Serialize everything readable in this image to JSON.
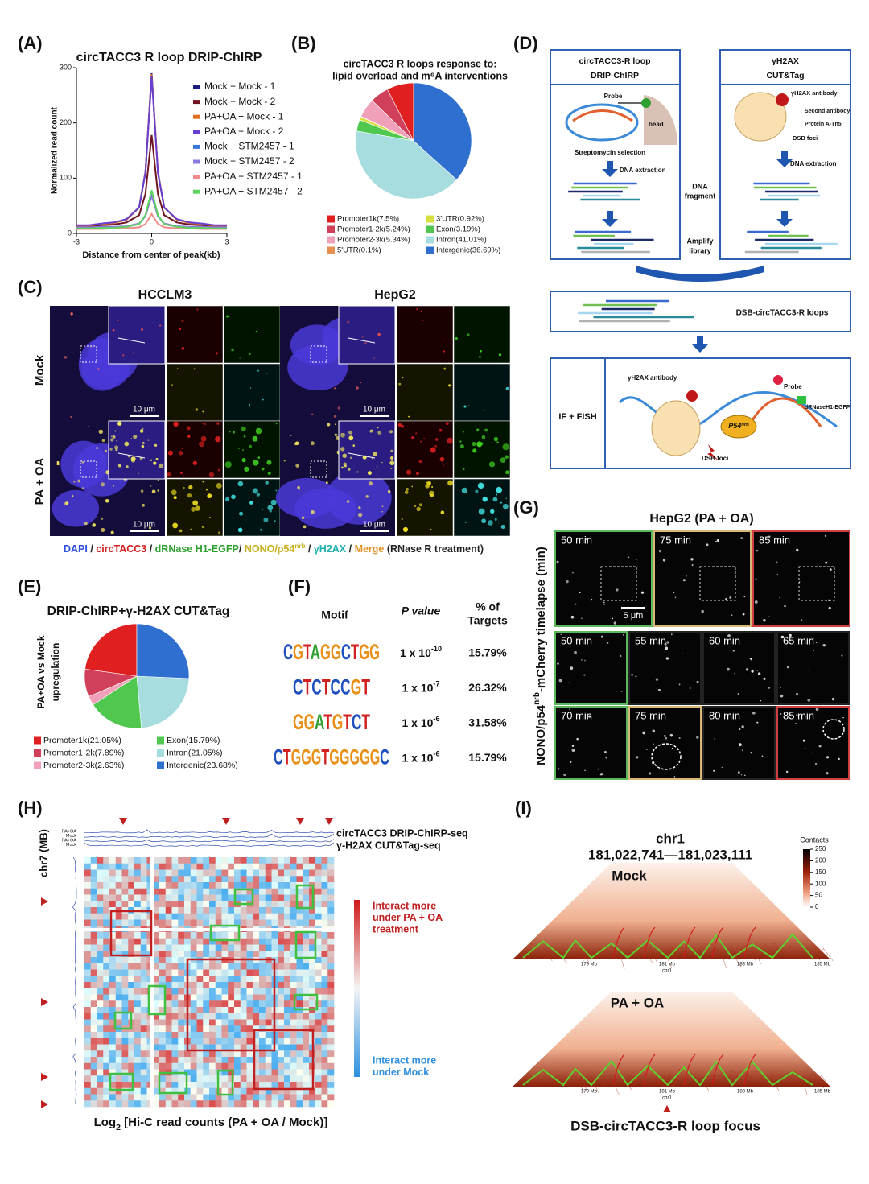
{
  "panel_labels": [
    "(A)",
    "(B)",
    "(C)",
    "(D)",
    "(E)",
    "(F)",
    "(G)",
    "(H)",
    "(I)"
  ],
  "chart_data": [
    {
      "type": "line",
      "title": "circTACC3 R loop DRIP-ChIRP",
      "xlabel": "Distance from center of peak(kb)",
      "ylabel": "Normalized read count",
      "x": [
        -3,
        -2.5,
        -2,
        -1.5,
        -1,
        -0.5,
        -0.25,
        0,
        0.25,
        0.5,
        1,
        1.5,
        2,
        2.5,
        3
      ],
      "xlim": [
        -3,
        3
      ],
      "xticks": [
        -3,
        0,
        3
      ],
      "ylim": [
        0,
        300
      ],
      "yticks": [
        0,
        100,
        200,
        300
      ],
      "series": [
        {
          "name": "Mock + Mock - 1",
          "color": "#1c1c78",
          "values": [
            14,
            14,
            17,
            20,
            25,
            47,
            111,
            290,
            111,
            47,
            25,
            20,
            17,
            14,
            14
          ]
        },
        {
          "name": "Mock + Mock - 2",
          "color": "#6e1420",
          "values": [
            13,
            13,
            15,
            16,
            20,
            33,
            71,
            178,
            71,
            33,
            20,
            16,
            15,
            13,
            13
          ]
        },
        {
          "name": "PA+OA + Mock - 1",
          "color": "#e0701e",
          "values": [
            14,
            14,
            17,
            19,
            25,
            47,
            110,
            288,
            110,
            47,
            25,
            19,
            17,
            14,
            14
          ]
        },
        {
          "name": "PA+OA + Mock - 2",
          "color": "#6a3fd0",
          "values": [
            15,
            15,
            18,
            20,
            26,
            47,
            109,
            284,
            109,
            47,
            26,
            20,
            18,
            15,
            15
          ]
        },
        {
          "name": "Mock + STM2457 - 1",
          "color": "#3a78d8",
          "values": [
            10,
            10,
            11,
            11,
            12,
            17,
            32,
            72,
            32,
            17,
            12,
            11,
            11,
            10,
            10
          ]
        },
        {
          "name": "Mock + STM2457 - 2",
          "color": "#8a78e0",
          "values": [
            11,
            11,
            12,
            12,
            13,
            18,
            31,
            68,
            31,
            18,
            13,
            12,
            12,
            11,
            11
          ]
        },
        {
          "name": "PA+OA + STM2457  - 1",
          "color": "#f08a8a",
          "values": [
            8,
            8,
            8,
            9,
            9,
            11,
            17,
            35,
            17,
            11,
            9,
            9,
            8,
            8,
            8
          ]
        },
        {
          "name": "PA+OA + STM2457  - 2",
          "color": "#5fd35f",
          "values": [
            9,
            9,
            10,
            10,
            12,
            17,
            33,
            78,
            33,
            17,
            12,
            10,
            10,
            9,
            9
          ]
        }
      ]
    },
    {
      "type": "pie",
      "title": [
        "circTACC3 R loops response to:",
        "lipid overload and m⁶A interventions"
      ],
      "categories": [
        "Promoter1k",
        "Promoter1-2k",
        "Promoter2-3k",
        "5'UTR",
        "3'UTR",
        "Exon",
        "Intron",
        "Intergenic"
      ],
      "values": [
        7.5,
        5.24,
        5.34,
        0.1,
        0.92,
        3.19,
        41.01,
        36.69
      ],
      "value_labels": [
        "Promoter1k(7.5%)",
        "Promoter1-2k(5.24%)",
        "Promoter2-3k(5.34%)",
        "5'UTR(0.1%)",
        "3'UTR(0.92%)",
        "Exon(3.19%)",
        "Intron(41.01%)",
        "Intergenic(36.69%)"
      ],
      "colors": [
        "#e02020",
        "#d0405a",
        "#f0a0b8",
        "#e89050",
        "#d8e040",
        "#50c850",
        "#a8dde0",
        "#2f6fd0"
      ]
    },
    {
      "type": "pie",
      "title": "DRIP-ChIRP+γ-H2AX CUT&Tag",
      "side_label": [
        "PA+OA vs Mock",
        "upregulation"
      ],
      "categories": [
        "Promoter1k",
        "Promoter1-2k",
        "Promoter2-3k",
        "Exon",
        "Intron",
        "Intergenic"
      ],
      "values": [
        21.05,
        7.89,
        2.63,
        15.79,
        21.05,
        23.68
      ],
      "value_labels": [
        "Promoter1k(21.05%)",
        "Promoter1-2k(7.89%)",
        "Promoter2-3k(2.63%)",
        "Exon(15.79%)",
        "Intron(21.05%)",
        "Intergenic(23.68%)"
      ],
      "colors": [
        "#e02020",
        "#d0405a",
        "#f0a0b8",
        "#50c850",
        "#a8dde0",
        "#2f6fd0"
      ]
    }
  ],
  "panel_c": {
    "columns": [
      "HCCLM3",
      "HepG2"
    ],
    "rows": [
      "Mock",
      "PA + OA"
    ],
    "scale_bar": "10 μm",
    "legend": [
      {
        "text": "DAPI",
        "color": "#3050e0"
      },
      {
        "text": " / ",
        "color": "#222222"
      },
      {
        "text": "circTACC3",
        "color": "#d02020"
      },
      {
        "text": " / ",
        "color": "#222222"
      },
      {
        "text": "dRNase H1-EGFP",
        "color": "#30a030"
      },
      {
        "text": "/ ",
        "color": "#222222"
      },
      {
        "text": "NONO/p54",
        "color": "#c8b020"
      },
      {
        "text": "nrb",
        "color": "#c8b020",
        "superscript": true
      },
      {
        "text": " / ",
        "color": "#222222"
      },
      {
        "text": "γH2AX",
        "color": "#20b0b0"
      },
      {
        "text": " / ",
        "color": "#222222"
      },
      {
        "text": "Merge",
        "color": "#e09020"
      },
      {
        "text": " (RNase R treatment)",
        "color": "#222222"
      }
    ]
  },
  "panel_d": {
    "left_header": [
      "circTACC3-R loop",
      "DRIP-ChIRP"
    ],
    "right_header": [
      "γH2AX",
      "CUT&Tag"
    ],
    "probe": "Probe",
    "bead": "bead",
    "selection": "Streptomycin selection",
    "extraction": "DNA extraction",
    "middle": [
      "DNA",
      "fragment"
    ],
    "amplify": [
      "Amplify",
      "library"
    ],
    "antibody": "γH2AX antibody",
    "second_antibody": "Second antibody",
    "protein": "Protein A-Tn5",
    "dsb": "DSB foci",
    "merged": "DSB-circTACC3-R loops",
    "if_fish": "IF + FISH",
    "p54": [
      "P54",
      "nrb"
    ],
    "egfp": "dRNaseH1-EGFP"
  },
  "panel_f": {
    "motif_header": "Motif",
    "p_header": "P value",
    "pct_header": [
      "% of",
      "Targets"
    ],
    "rows": [
      {
        "motif": "CGTAGGCTGG",
        "p_base": "1 x 10",
        "p_exp": "-10",
        "targets": "15.79%"
      },
      {
        "motif": "CTCTCCGT",
        "p_base": "1 x 10",
        "p_exp": "-7",
        "targets": "26.32%"
      },
      {
        "motif": "GGATGTCT",
        "p_base": "1 x 10",
        "p_exp": "-6",
        "targets": "31.58%"
      },
      {
        "motif": "CTGGGTGGGGGC",
        "p_base": "1 x 10",
        "p_exp": "-6",
        "targets": "15.79%"
      }
    ]
  },
  "panel_g": {
    "title": "HepG2 (PA + OA)",
    "ylabel": [
      "NONO/p54",
      "nrb",
      "-mCherry timelapse (min)"
    ],
    "top_times": [
      "50 min",
      "75 min",
      "85 min"
    ],
    "grid_times": [
      "50 min",
      "55 min",
      "60 min",
      "65 min",
      "70 min",
      "75 min",
      "80 min",
      "85 min"
    ],
    "scale_bar": "5 μm"
  },
  "panel_h": {
    "chr_label": "chr7 (MB)",
    "track_labels": [
      "circTACC3 DRIP-ChIRP-seq",
      "γ-H2AX CUT&Tag-seq"
    ],
    "track_row_labels": [
      "PA+OA",
      "Mock",
      "PA+OA",
      "Mock"
    ],
    "more_pa": [
      "Interact more",
      "under PA + OA",
      "treatment"
    ],
    "more_mock": [
      "Interact more",
      "under Mock"
    ],
    "xlabel": [
      "Log",
      "2",
      " [Hi-C read counts (PA + OA / Mock)]"
    ]
  },
  "panel_i": {
    "chrom": "chr1",
    "coords": "181,022,741—181,023,111",
    "conditions": [
      "Mock",
      "PA + OA"
    ],
    "colorbar_title": "Contacts",
    "colorbar_ticks": [
      250,
      200,
      150,
      100,
      50,
      0
    ],
    "axis_labels": [
      "179 Mb",
      "181 Mb",
      "183 Mb",
      "185 Mb"
    ],
    "axis_chrom": "chr1",
    "focus": "DSB-circTACC3-R loop focus"
  }
}
